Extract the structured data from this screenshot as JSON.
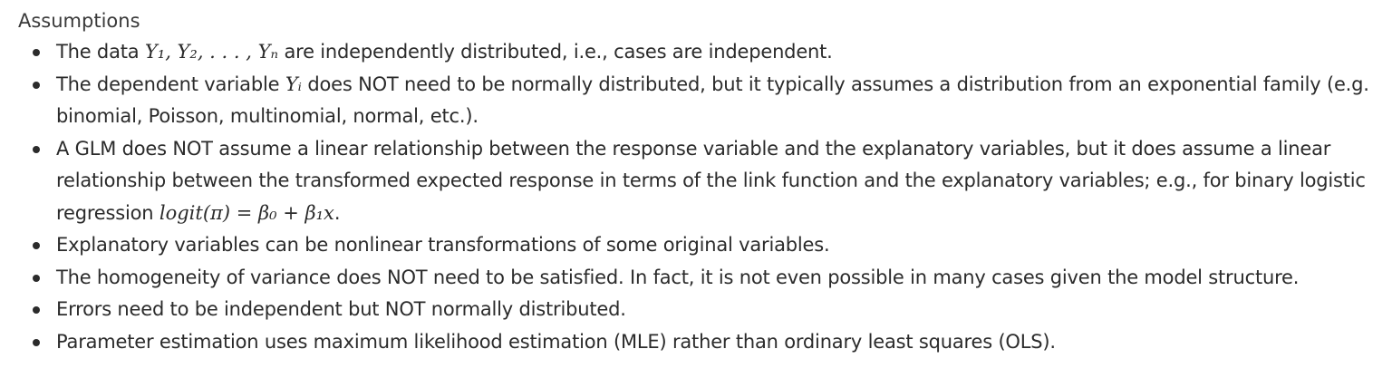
{
  "heading": "Assumptions",
  "items": [
    {
      "before": "The data ",
      "math": "Y₁, Y₂, . . . , Yₙ",
      "after": " are independently distributed, i.e., cases are independent."
    },
    {
      "before": "The dependent variable ",
      "math": "Yᵢ",
      "after": " does NOT need to be normally distributed, but it typically assumes a distribution from an exponential family (e.g. binomial, Poisson, multinomial, normal, etc.)."
    },
    {
      "before": "A GLM does NOT assume a linear relationship between the response variable and the explanatory variables, but it does assume a linear relationship between the transformed expected response in terms of the link function and the explanatory variables; e.g., for binary logistic regression ",
      "math": "logit(π) = β₀ + β₁x",
      "after": "."
    },
    {
      "before": "Explanatory variables can be nonlinear transformations of some original variables.",
      "math": "",
      "after": ""
    },
    {
      "before": "The homogeneity of variance does NOT need to be satisfied. In fact, it is not even possible in many cases given the model structure.",
      "math": "",
      "after": ""
    },
    {
      "before": "Errors need to be independent but NOT normally distributed.",
      "math": "",
      "after": ""
    },
    {
      "before": "Parameter estimation uses maximum likelihood estimation (MLE) rather than ordinary least squares (OLS).",
      "math": "",
      "after": ""
    }
  ]
}
